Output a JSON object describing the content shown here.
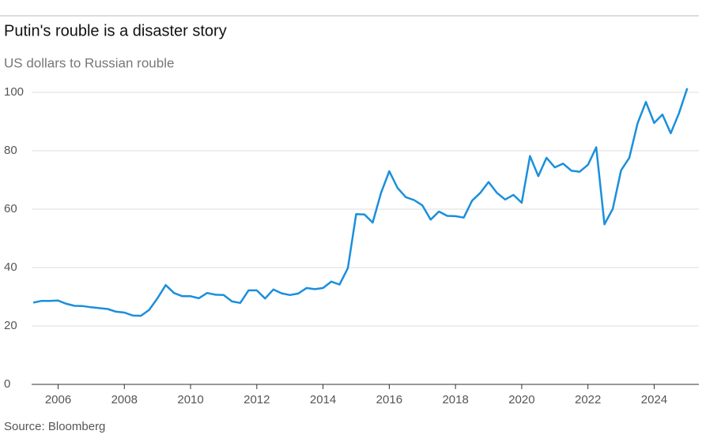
{
  "chart_data": {
    "type": "line",
    "title": "Putin's rouble is a disaster story",
    "subtitle": "US dollars to Russian rouble",
    "source": "Source: Bloomberg",
    "color": "#1a8fdd",
    "x": [
      2005.25,
      2005.5,
      2005.75,
      2006.0,
      2006.25,
      2006.5,
      2006.75,
      2007.0,
      2007.25,
      2007.5,
      2007.75,
      2008.0,
      2008.25,
      2008.5,
      2008.75,
      2009.0,
      2009.25,
      2009.5,
      2009.75,
      2010.0,
      2010.25,
      2010.5,
      2010.75,
      2011.0,
      2011.25,
      2011.5,
      2011.75,
      2012.0,
      2012.25,
      2012.5,
      2012.75,
      2013.0,
      2013.25,
      2013.5,
      2013.75,
      2014.0,
      2014.25,
      2014.5,
      2014.75,
      2015.0,
      2015.25,
      2015.5,
      2015.75,
      2016.0,
      2016.25,
      2016.5,
      2016.75,
      2017.0,
      2017.25,
      2017.5,
      2017.75,
      2018.0,
      2018.25,
      2018.5,
      2018.75,
      2019.0,
      2019.25,
      2019.5,
      2019.75,
      2020.0,
      2020.25,
      2020.5,
      2020.75,
      2021.0,
      2021.25,
      2021.5,
      2021.75,
      2022.0,
      2022.25,
      2022.5,
      2022.75,
      2023.0,
      2023.25,
      2023.5,
      2023.75,
      2024.0,
      2024.25,
      2024.5,
      2024.75,
      2025.0
    ],
    "values": [
      28,
      28.6,
      28.6,
      28.7,
      27.6,
      26.9,
      26.8,
      26.4,
      26.1,
      25.8,
      24.9,
      24.6,
      23.6,
      23.5,
      25.5,
      29.5,
      34,
      31.3,
      30.2,
      30.2,
      29.5,
      31.3,
      30.7,
      30.6,
      28.4,
      27.9,
      32.2,
      32.2,
      29.4,
      32.5,
      31.2,
      30.6,
      31.1,
      33,
      32.6,
      33,
      35.2,
      34.2,
      39.8,
      58.3,
      58.2,
      55.4,
      65.5,
      73,
      67.3,
      64.1,
      63.1,
      61.3,
      56.4,
      59.2,
      57.7,
      57.6,
      57.1,
      62.9,
      65.6,
      69.3,
      65.6,
      63.3,
      64.9,
      62.2,
      78.2,
      71.3,
      77.6,
      74.3,
      75.6,
      73.2,
      72.8,
      75.2,
      81.2,
      54.8,
      60.1,
      73.3,
      77.6,
      89.4,
      96.7,
      89.5,
      92.4,
      86,
      92.9,
      101.4
    ],
    "xlim": [
      2005.2,
      2025.35
    ],
    "xticks": [
      2006,
      2008,
      2010,
      2012,
      2014,
      2016,
      2018,
      2020,
      2022,
      2024
    ],
    "ylim": [
      0,
      100
    ],
    "yticks": [
      0,
      20,
      40,
      60,
      80,
      100
    ],
    "grid": true
  }
}
